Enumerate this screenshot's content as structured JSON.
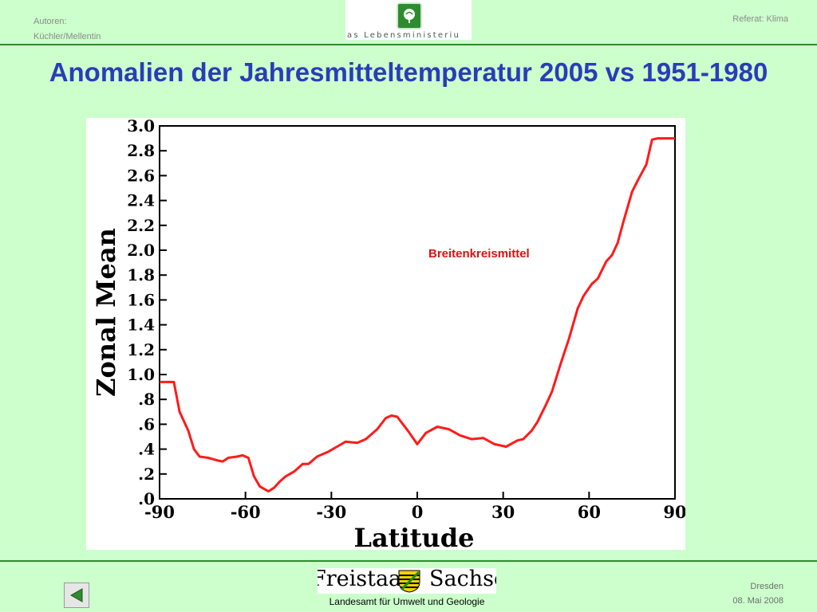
{
  "header": {
    "authors_label": "Autoren:",
    "authors": "Küchler/Mellentin",
    "topic": "Referat: Klima",
    "logo_text": "as Lebensministeriu"
  },
  "title": "Anomalien der Jahresmitteltemperatur 2005 vs 1951-1980",
  "footer": {
    "logo_word_left": "Freistaat",
    "logo_word_right": "Sachsen",
    "institution": "Landesamt für Umwelt und Geologie",
    "city": "Dresden",
    "date": "08. Mai 2008"
  },
  "colors": {
    "background": "#ccffcc",
    "title": "#2b3cb8",
    "line": "#ff1a1a",
    "rule": "#2e8b2e"
  },
  "icons": {
    "nav": "arrow-left-icon",
    "header_logo": "leaf-icon",
    "footer_logo": "coat-of-arms-icon"
  },
  "chart_data": {
    "type": "line",
    "title": "",
    "xlabel": "Latitude",
    "ylabel": "Zonal Mean",
    "xlim": [
      -90,
      90
    ],
    "ylim": [
      0,
      3.0
    ],
    "x_ticks": [
      "-90",
      "-60",
      "-30",
      "0",
      "30",
      "60",
      "90"
    ],
    "y_ticks": [
      ".0",
      ".2",
      ".4",
      ".6",
      ".8",
      "1.0",
      "1.2",
      "1.4",
      "1.6",
      "1.8",
      "2.0",
      "2.2",
      "2.4",
      "2.6",
      "2.8",
      "3.0"
    ],
    "annotation": "Breitenkreismittel",
    "series": [
      {
        "x": [
          -90,
          -85,
          -83,
          -80,
          -78,
          -76,
          -73,
          -70,
          -68,
          -66,
          -63,
          -61,
          -59,
          -57,
          -55,
          -52,
          -50,
          -48,
          -46,
          -43,
          -40,
          -38,
          -35,
          -31,
          -28,
          -25,
          -21,
          -18,
          -14,
          -11,
          -9,
          -7,
          -3,
          0,
          3,
          7,
          11,
          15,
          19,
          23,
          27,
          31,
          35,
          37,
          40,
          42,
          45,
          47,
          50,
          53,
          56,
          58,
          61,
          63,
          66,
          68,
          70,
          72,
          75,
          77,
          80,
          82,
          84,
          87,
          90
        ],
        "y": [
          0.94,
          0.94,
          0.7,
          0.55,
          0.4,
          0.34,
          0.33,
          0.31,
          0.3,
          0.33,
          0.34,
          0.35,
          0.33,
          0.18,
          0.1,
          0.06,
          0.09,
          0.14,
          0.18,
          0.22,
          0.28,
          0.28,
          0.34,
          0.38,
          0.42,
          0.46,
          0.45,
          0.48,
          0.56,
          0.65,
          0.67,
          0.66,
          0.54,
          0.44,
          0.53,
          0.58,
          0.56,
          0.51,
          0.48,
          0.49,
          0.44,
          0.42,
          0.47,
          0.48,
          0.55,
          0.62,
          0.76,
          0.86,
          1.08,
          1.29,
          1.53,
          1.63,
          1.73,
          1.77,
          1.91,
          1.96,
          2.06,
          2.23,
          2.47,
          2.56,
          2.69,
          2.89,
          2.9,
          2.9,
          2.9
        ]
      }
    ]
  }
}
